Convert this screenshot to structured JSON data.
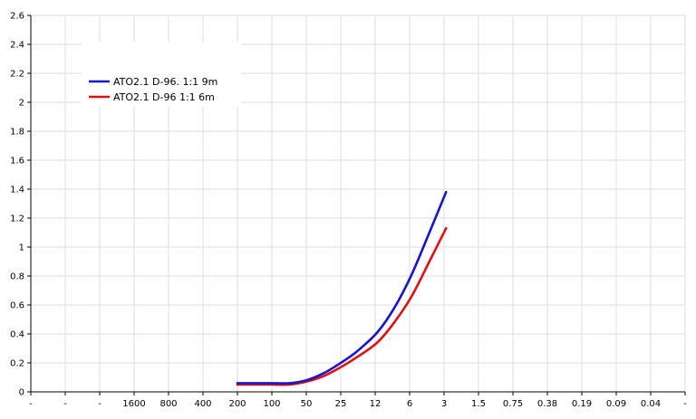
{
  "chart_data": {
    "type": "line",
    "x_tick_labels": [
      "-",
      "-",
      "-",
      "1600",
      "800",
      "400",
      "200",
      "100",
      "50",
      "25",
      "12",
      "6",
      "3",
      "1.5",
      "0.75",
      "0.38",
      "0.19",
      "0.09",
      "0.04",
      "-"
    ],
    "y_ticks": [
      "0",
      "0.2",
      "0.4",
      "0.6",
      "0.8",
      "1",
      "1.2",
      "1.4",
      "1.6",
      "1.8",
      "2",
      "2.2",
      "2.4",
      "2.6"
    ],
    "ylim": [
      0,
      2.6
    ],
    "grid": true,
    "legend_position": "top-left",
    "series": [
      {
        "name": "ATO2.1 D-96. 1:1 9m",
        "color": "#1515d0",
        "points": [
          {
            "x": 200,
            "y": 0.06
          },
          {
            "x": 100,
            "y": 0.06
          },
          {
            "x": 70,
            "y": 0.06
          },
          {
            "x": 50,
            "y": 0.08
          },
          {
            "x": 35,
            "y": 0.13
          },
          {
            "x": 25,
            "y": 0.2
          },
          {
            "x": 18,
            "y": 0.28
          },
          {
            "x": 12,
            "y": 0.41
          },
          {
            "x": 8.5,
            "y": 0.58
          },
          {
            "x": 6,
            "y": 0.81
          },
          {
            "x": 4.2,
            "y": 1.1
          },
          {
            "x": 3,
            "y": 1.38
          }
        ]
      },
      {
        "name": "ATO2.1 D-96 1:1 6m",
        "color": "#e01010",
        "points": [
          {
            "x": 200,
            "y": 0.05
          },
          {
            "x": 100,
            "y": 0.05
          },
          {
            "x": 70,
            "y": 0.05
          },
          {
            "x": 50,
            "y": 0.07
          },
          {
            "x": 35,
            "y": 0.11
          },
          {
            "x": 25,
            "y": 0.17
          },
          {
            "x": 18,
            "y": 0.24
          },
          {
            "x": 12,
            "y": 0.34
          },
          {
            "x": 8.5,
            "y": 0.48
          },
          {
            "x": 6,
            "y": 0.66
          },
          {
            "x": 4.2,
            "y": 0.9
          },
          {
            "x": 3,
            "y": 1.13
          }
        ]
      }
    ]
  }
}
